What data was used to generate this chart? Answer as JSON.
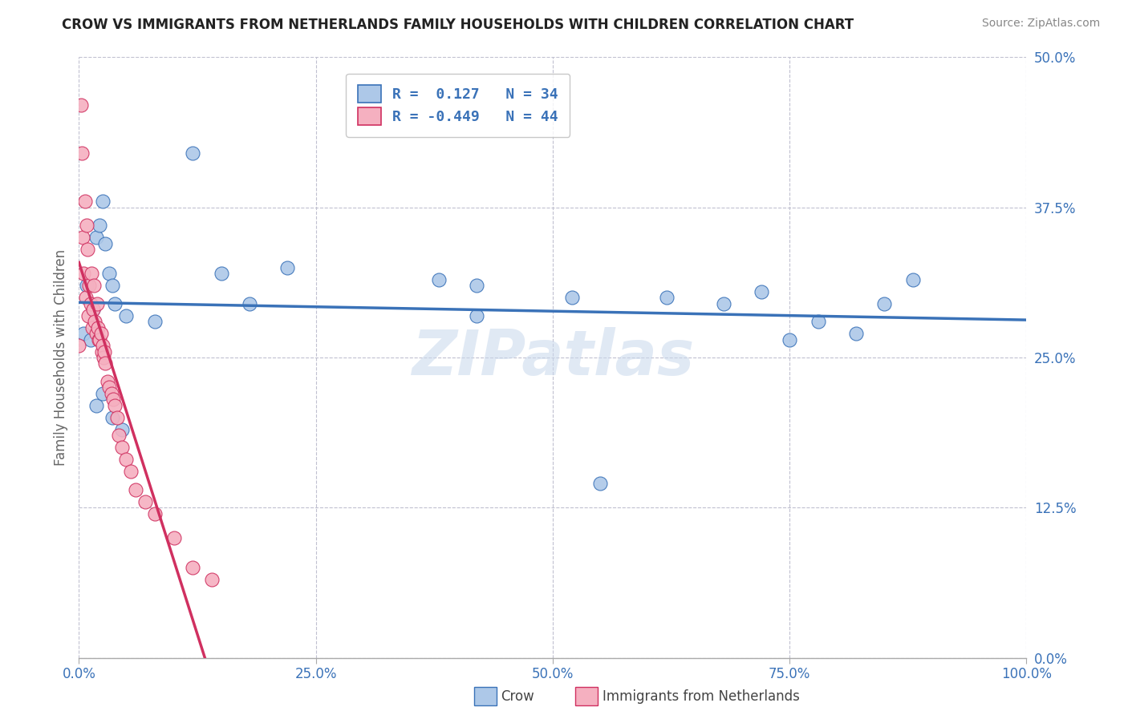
{
  "title": "CROW VS IMMIGRANTS FROM NETHERLANDS FAMILY HOUSEHOLDS WITH CHILDREN CORRELATION CHART",
  "source": "Source: ZipAtlas.com",
  "ylabel": "Family Households with Children",
  "xlim": [
    0.0,
    1.0
  ],
  "ylim": [
    0.0,
    0.5
  ],
  "yticks": [
    0.0,
    0.125,
    0.25,
    0.375,
    0.5
  ],
  "ytick_labels": [
    "0.0%",
    "12.5%",
    "25.0%",
    "37.5%",
    "50.0%"
  ],
  "xticks": [
    0.0,
    0.25,
    0.5,
    0.75,
    1.0
  ],
  "xtick_labels": [
    "0.0%",
    "25.0%",
    "50.0%",
    "75.0%",
    "100.0%"
  ],
  "crow_R": 0.127,
  "crow_N": 34,
  "imm_R": -0.449,
  "imm_N": 44,
  "crow_color": "#adc8e8",
  "crow_line_color": "#3a72b8",
  "imm_color": "#f5b0c0",
  "imm_line_color": "#d03060",
  "background_color": "#ffffff",
  "grid_color": "#c0c0d0",
  "watermark": "ZIPatlas",
  "legend_label_crow": "Crow",
  "legend_label_imm": "Immigrants from Netherlands",
  "crow_x": [
    0.005,
    0.008,
    0.012,
    0.015,
    0.018,
    0.022,
    0.025,
    0.028,
    0.032,
    0.035,
    0.038,
    0.05,
    0.08,
    0.12,
    0.15,
    0.18,
    0.22,
    0.38,
    0.42,
    0.52,
    0.62,
    0.68,
    0.72,
    0.75,
    0.78,
    0.82,
    0.85,
    0.88,
    0.018,
    0.025,
    0.035,
    0.045,
    0.55,
    0.42
  ],
  "crow_y": [
    0.27,
    0.31,
    0.265,
    0.29,
    0.35,
    0.36,
    0.38,
    0.345,
    0.32,
    0.31,
    0.295,
    0.285,
    0.28,
    0.42,
    0.32,
    0.295,
    0.325,
    0.315,
    0.31,
    0.3,
    0.3,
    0.295,
    0.305,
    0.265,
    0.28,
    0.27,
    0.295,
    0.315,
    0.21,
    0.22,
    0.2,
    0.19,
    0.145,
    0.285
  ],
  "imm_x": [
    0.0,
    0.002,
    0.003,
    0.004,
    0.005,
    0.006,
    0.007,
    0.008,
    0.009,
    0.01,
    0.011,
    0.012,
    0.013,
    0.014,
    0.015,
    0.016,
    0.017,
    0.018,
    0.019,
    0.02,
    0.021,
    0.022,
    0.023,
    0.024,
    0.025,
    0.026,
    0.027,
    0.028,
    0.03,
    0.032,
    0.034,
    0.036,
    0.038,
    0.04,
    0.042,
    0.045,
    0.05,
    0.055,
    0.06,
    0.07,
    0.08,
    0.1,
    0.12,
    0.14
  ],
  "imm_y": [
    0.26,
    0.46,
    0.42,
    0.35,
    0.32,
    0.38,
    0.3,
    0.36,
    0.34,
    0.285,
    0.31,
    0.295,
    0.32,
    0.275,
    0.29,
    0.31,
    0.28,
    0.27,
    0.295,
    0.275,
    0.265,
    0.265,
    0.27,
    0.255,
    0.26,
    0.25,
    0.255,
    0.245,
    0.23,
    0.225,
    0.22,
    0.215,
    0.21,
    0.2,
    0.185,
    0.175,
    0.165,
    0.155,
    0.14,
    0.13,
    0.12,
    0.1,
    0.075,
    0.065
  ]
}
